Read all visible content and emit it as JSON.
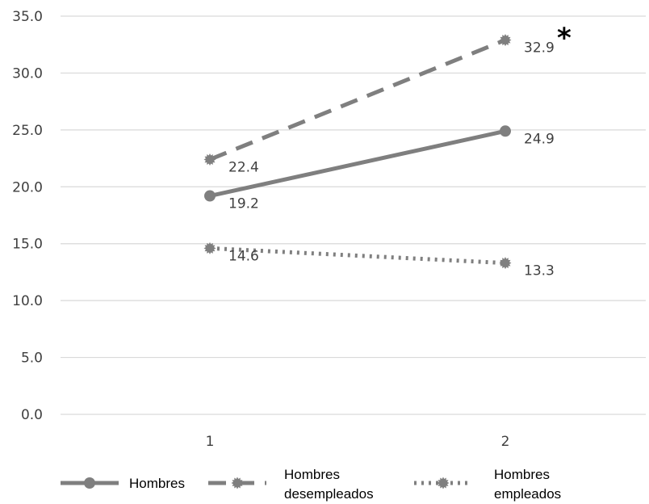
{
  "chart_data": {
    "type": "line",
    "categories": [
      "1",
      "2"
    ],
    "ylim": [
      0,
      35
    ],
    "yticks": [
      "0.0",
      "5.0",
      "10.0",
      "15.0",
      "20.0",
      "25.0",
      "30.0",
      "35.0"
    ],
    "grid": true,
    "legend_position": "bottom",
    "series": [
      {
        "name": "Hombres",
        "values": [
          19.2,
          24.9
        ],
        "labels": [
          "19.2",
          "24.9"
        ],
        "style": "solid",
        "color": "#7f7f7f"
      },
      {
        "name": "Hombres desempleados",
        "values": [
          22.4,
          32.9
        ],
        "labels": [
          "22.4",
          "32.9"
        ],
        "style": "dashed",
        "color": "#7f7f7f"
      },
      {
        "name": "Hombres empleados",
        "values": [
          14.6,
          13.3
        ],
        "labels": [
          "14.6",
          "13.3"
        ],
        "style": "dotted",
        "color": "#7f7f7f"
      }
    ],
    "annotations": [
      {
        "text": "*",
        "series": 1,
        "point": 1
      }
    ],
    "colors": {
      "gridline": "#d9d9d9",
      "line": "#7f7f7f",
      "text": "#3f3f3f"
    }
  }
}
